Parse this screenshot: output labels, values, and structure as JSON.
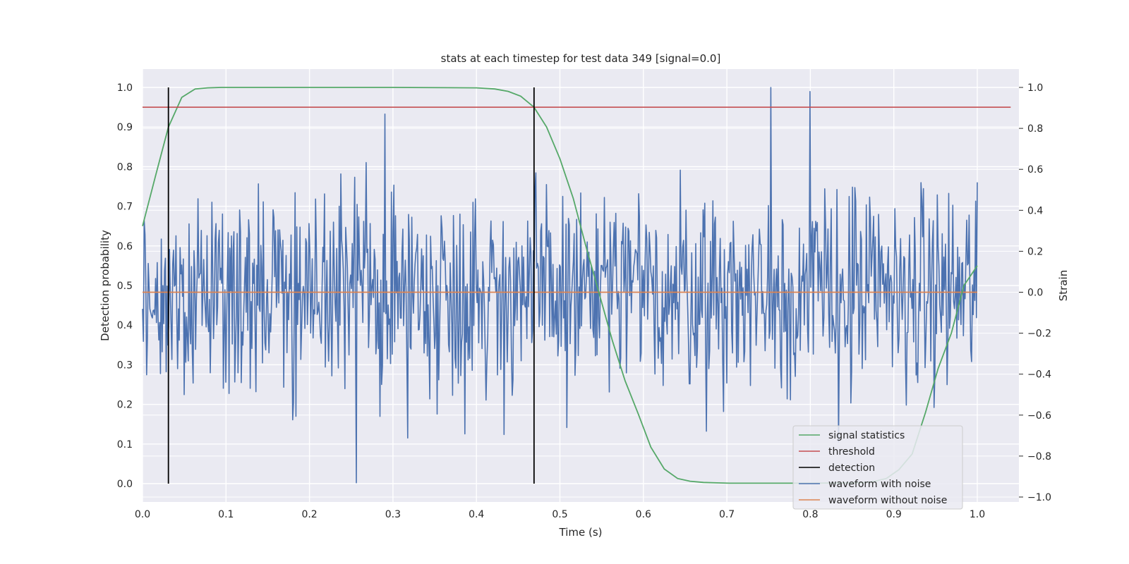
{
  "chart_data": {
    "type": "line",
    "title": "stats at each timestep for test data 349 [signal=0.0]",
    "xlabel": "Time (s)",
    "ylabel": "Detection probability",
    "ylabel_right": "Strain",
    "xlim": [
      0.0,
      1.05
    ],
    "ylim": [
      -0.05,
      1.05
    ],
    "ylim_right": [
      -1.0,
      1.0
    ],
    "xticks": [
      "0.0",
      "0.1",
      "0.2",
      "0.3",
      "0.4",
      "0.5",
      "0.6",
      "0.7",
      "0.8",
      "0.9",
      "1.0"
    ],
    "yticks": [
      "0.0",
      "0.1",
      "0.2",
      "0.3",
      "0.4",
      "0.5",
      "0.6",
      "0.7",
      "0.8",
      "0.9",
      "1.0"
    ],
    "yticks_right": [
      "−1.0",
      "−0.8",
      "−0.6",
      "−0.4",
      "−0.2",
      "0.0",
      "0.2",
      "0.4",
      "0.6",
      "0.8",
      "1.0"
    ],
    "grid": true,
    "legend_position": "lower-right",
    "series": [
      {
        "name": "signal statistics",
        "color": "#55a868",
        "axis": "left",
        "x": [
          0.0,
          0.016,
          0.031,
          0.047,
          0.063,
          0.078,
          0.094,
          0.2,
          0.3,
          0.4,
          0.422,
          0.438,
          0.453,
          0.469,
          0.484,
          0.5,
          0.516,
          0.531,
          0.547,
          0.563,
          0.578,
          0.594,
          0.609,
          0.625,
          0.641,
          0.656,
          0.672,
          0.688,
          0.703,
          0.75,
          0.8,
          0.86,
          0.875,
          0.891,
          0.906,
          0.922,
          0.938,
          0.953,
          0.969,
          0.984,
          1.0
        ],
        "y": [
          0.65,
          0.78,
          0.9,
          0.975,
          0.996,
          0.999,
          1.0,
          1.0,
          1.0,
          0.999,
          0.996,
          0.99,
          0.978,
          0.95,
          0.9,
          0.82,
          0.72,
          0.6,
          0.48,
          0.36,
          0.26,
          0.175,
          0.092,
          0.037,
          0.013,
          0.006,
          0.003,
          0.002,
          0.001,
          0.001,
          0.001,
          0.002,
          0.005,
          0.013,
          0.035,
          0.075,
          0.18,
          0.29,
          0.38,
          0.5,
          0.55
        ]
      },
      {
        "name": "threshold",
        "color": "#c44e52",
        "axis": "left",
        "x": [
          0.0,
          1.04
        ],
        "y": [
          0.95,
          0.95
        ]
      },
      {
        "name": "detection",
        "color": "#000000",
        "axis": "left",
        "vlines": [
          0.031,
          0.469
        ],
        "y_range": [
          0.0,
          1.0
        ]
      },
      {
        "name": "waveform with noise",
        "color": "#4c72b0",
        "axis": "right",
        "x_range": [
          0.0,
          1.0
        ],
        "y_range": [
          -0.93,
          1.0
        ],
        "peaks": [
          {
            "x": 0.256,
            "y": -0.93
          },
          {
            "x": 0.29,
            "y": 0.87
          },
          {
            "x": 0.753,
            "y": 1.0
          },
          {
            "x": 0.8,
            "y": 0.98
          }
        ]
      },
      {
        "name": "waveform without noise",
        "color": "#dd8452",
        "axis": "right",
        "x": [
          0.0,
          1.0
        ],
        "y": [
          0.0,
          0.0
        ]
      }
    ]
  }
}
